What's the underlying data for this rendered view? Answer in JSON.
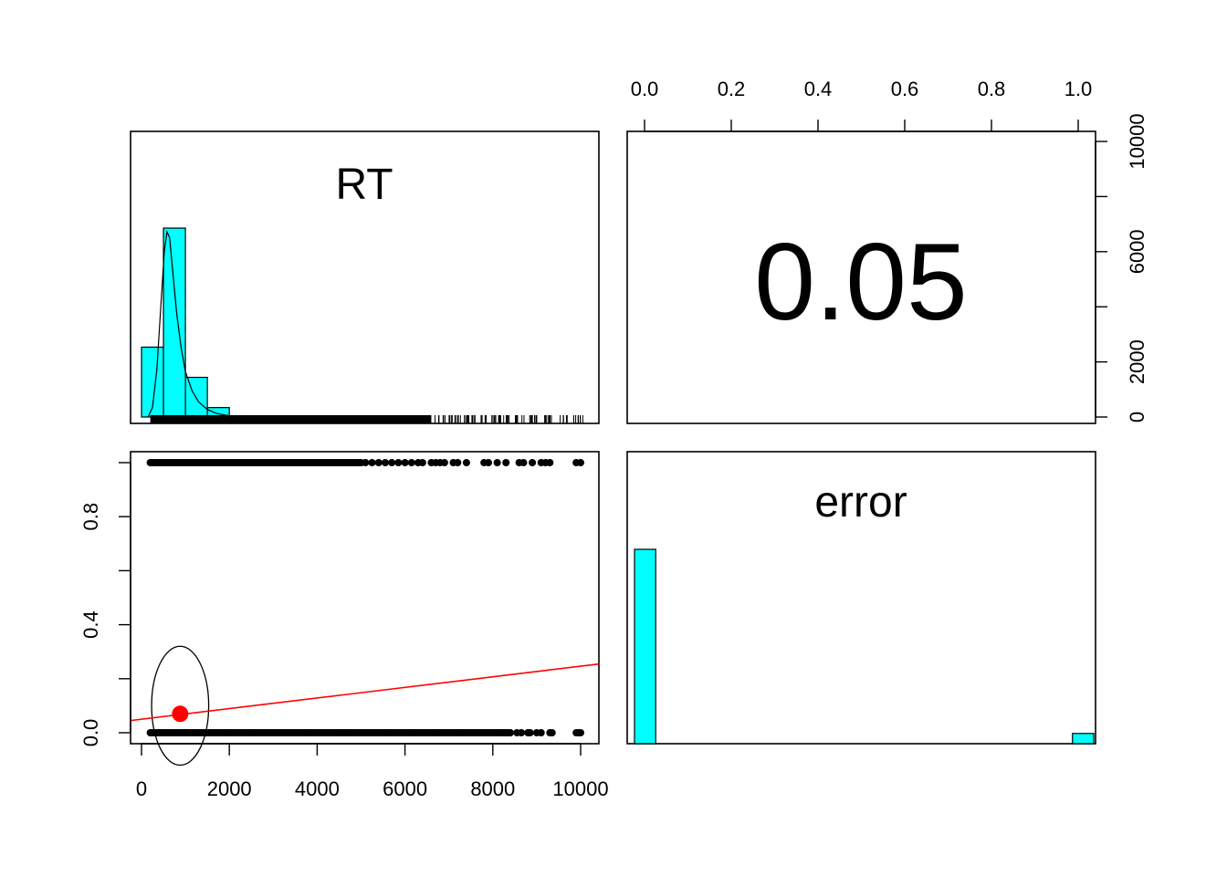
{
  "chart_data": {
    "type": "pairs",
    "variables": [
      "RT",
      "error"
    ],
    "correlation": "0.05",
    "colors": {
      "hist_fill": "#00ffff",
      "points": "#000000",
      "regression": "#ff0000",
      "centroid": "#ff0000",
      "frame": "#000000"
    },
    "rt_axis": {
      "range": [
        0,
        10000
      ],
      "ticks": [
        0,
        2000,
        4000,
        6000,
        8000,
        10000
      ],
      "tick_labels": [
        "0",
        "2000",
        "4000",
        "6000",
        "8000",
        "10000"
      ]
    },
    "error_axis": {
      "range": [
        0,
        1
      ],
      "ticks_bottom_left": [
        0.0,
        0.4,
        0.8
      ],
      "tick_labels_bottom_left": [
        "0.0",
        "0.4",
        "0.8"
      ],
      "ticks_top_right": [
        0.0,
        0.2,
        0.4,
        0.6,
        0.8,
        1.0
      ],
      "tick_labels_top_right": [
        "0.0",
        "0.2",
        "0.4",
        "0.6",
        "0.8",
        "1.0"
      ]
    },
    "rt_histogram": {
      "bin_edges": [
        0,
        500,
        1000,
        1500,
        2000
      ],
      "densities": [
        0.37,
        1.0,
        0.21,
        0.05
      ]
    },
    "rt_density_curve": [
      [
        150,
        0
      ],
      [
        250,
        0.05
      ],
      [
        350,
        0.25
      ],
      [
        450,
        0.62
      ],
      [
        520,
        0.88
      ],
      [
        580,
        0.98
      ],
      [
        640,
        0.95
      ],
      [
        720,
        0.75
      ],
      [
        800,
        0.55
      ],
      [
        900,
        0.37
      ],
      [
        1000,
        0.24
      ],
      [
        1150,
        0.14
      ],
      [
        1300,
        0.08
      ],
      [
        1500,
        0.04
      ],
      [
        1700,
        0.02
      ],
      [
        1900,
        0.01
      ],
      [
        2200,
        0
      ]
    ],
    "error_histogram": {
      "bins": [
        [
          0.0,
          0.05
        ],
        [
          0.95,
          1.0
        ]
      ],
      "counts": [
        0.95,
        0.05
      ]
    },
    "scatter": {
      "error0_rt_range": [
        200,
        8400
      ],
      "error0_sparse_rt": [
        8550,
        8650,
        8800,
        8850,
        9000,
        9100,
        9300,
        9350,
        9900,
        9950,
        10000
      ],
      "error1_rt_range": [
        200,
        5000
      ],
      "error1_sparse_rt": [
        5100,
        5250,
        5400,
        5550,
        5700,
        5850,
        6000,
        6150,
        6300,
        6400,
        6600,
        6700,
        6800,
        6900,
        7100,
        7200,
        7400,
        7800,
        7900,
        8100,
        8300,
        8600,
        8700,
        8900,
        9100,
        9200,
        9300,
        9900,
        10000
      ],
      "regression": {
        "intercept": 0.05,
        "slope": 1.93e-05
      },
      "centroid": {
        "rt": 880,
        "error": 0.07
      },
      "ellipse": {
        "center_rt": 880,
        "center_error": 0.1,
        "rt_radius": 650,
        "error_radius": 0.22
      }
    }
  }
}
